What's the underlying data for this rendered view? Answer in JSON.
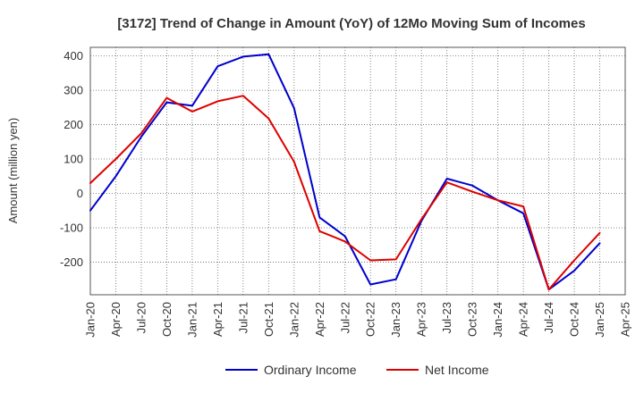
{
  "chart_data": {
    "type": "line",
    "title": "[3172]  Trend of Change in Amount (YoY) of 12Mo Moving Sum of Incomes",
    "xlabel": "",
    "ylabel": "Amount (million yen)",
    "x_ticks": [
      "Jan-20",
      "Apr-20",
      "Jul-20",
      "Oct-20",
      "Jan-21",
      "Apr-21",
      "Jul-21",
      "Oct-21",
      "Jan-22",
      "Apr-22",
      "Jul-22",
      "Oct-22",
      "Jan-23",
      "Apr-23",
      "Jul-23",
      "Oct-23",
      "Jan-24",
      "Apr-24",
      "Jul-24",
      "Oct-24",
      "Jan-25",
      "Apr-25"
    ],
    "y_ticks": [
      -200,
      -100,
      0,
      100,
      200,
      300,
      400
    ],
    "ylim": [
      -295,
      425
    ],
    "grid": true,
    "legend_position": "bottom",
    "series": [
      {
        "name": "Ordinary Income",
        "color": "#0000cc",
        "values": [
          -50,
          50,
          165,
          265,
          255,
          370,
          398,
          405,
          248,
          -70,
          -125,
          -265,
          -250,
          -80,
          43,
          23,
          -20,
          -58,
          -280,
          -225,
          -145
        ]
      },
      {
        "name": "Net Income",
        "color": "#dd0000",
        "values": [
          30,
          100,
          175,
          278,
          238,
          268,
          284,
          218,
          92,
          -110,
          -140,
          -195,
          -192,
          -75,
          32,
          5,
          -20,
          -38,
          -280,
          -195,
          -115
        ]
      }
    ]
  }
}
